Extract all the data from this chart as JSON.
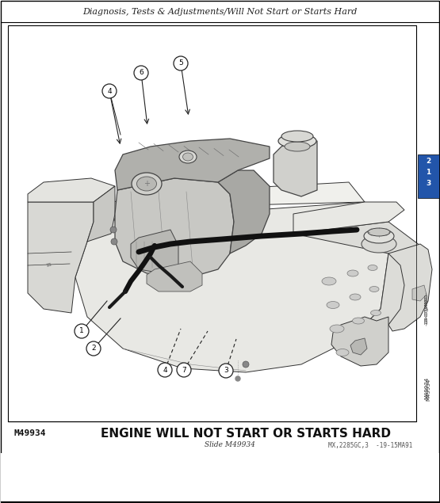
{
  "title_header": "Diagnosis, Tests & Adjustments/Will Not Start or Starts Hard",
  "caption_main": "ENGINE WILL NOT START OR STARTS HARD",
  "caption_ref_left": "M49934",
  "caption_slide": "Slide M49934",
  "caption_code": "MX,2285GC,3  -19-15MA91",
  "side_vertical_text": "-19-07JAN91-",
  "side_vertical_text2": "M49934",
  "bg_color": "#ffffff",
  "border_color": "#000000",
  "fig_width": 5.55,
  "fig_height": 6.35,
  "dpi": 100,
  "right_tab_color": "#2255aa",
  "right_tab_nums": [
    "2",
    "1",
    "3"
  ]
}
